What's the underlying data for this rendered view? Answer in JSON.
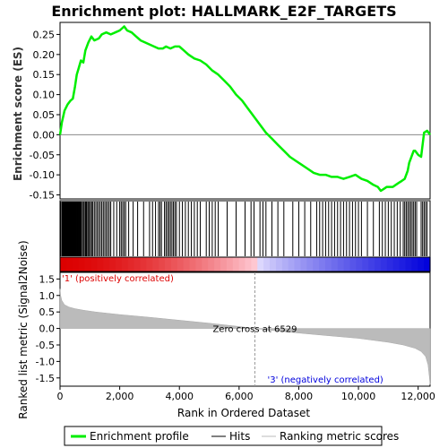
{
  "colors": {
    "enrichment": "#00ee00",
    "hits": "#000000",
    "metric_fill": "#bbbbbb",
    "positive": "#dd0000",
    "negative": "#0000dd",
    "zero_line": "#888888"
  },
  "chart_data": {
    "title": "Enrichment plot: HALLMARK_E2F_TARGETS",
    "es_panel": {
      "type": "line",
      "ylabel": "Enrichment score (ES)",
      "ylim": [
        -0.16,
        0.28
      ],
      "yticks": [
        "0.25",
        "0.20",
        "0.15",
        "0.10",
        "0.05",
        "0.00",
        "-0.05",
        "-0.10",
        "-0.15"
      ],
      "series": [
        {
          "name": "Enrichment profile",
          "x": [
            0,
            60,
            150,
            250,
            350,
            430,
            500,
            560,
            620,
            700,
            780,
            850,
            950,
            1050,
            1150,
            1300,
            1400,
            1550,
            1700,
            1850,
            2000,
            2150,
            2250,
            2400,
            2550,
            2700,
            2850,
            3000,
            3150,
            3300,
            3450,
            3550,
            3700,
            3850,
            4000,
            4150,
            4300,
            4500,
            4700,
            4900,
            5100,
            5300,
            5500,
            5700,
            5900,
            6100,
            6300,
            6500,
            6700,
            6900,
            7100,
            7300,
            7500,
            7700,
            7900,
            8100,
            8300,
            8500,
            8700,
            8900,
            9100,
            9300,
            9500,
            9700,
            9900,
            10100,
            10300,
            10500,
            10650,
            10750,
            10850,
            10950,
            11050,
            11150,
            11250,
            11350,
            11450,
            11550,
            11650,
            11700,
            11750,
            11800,
            11850,
            11900,
            12000,
            12100,
            12200,
            12300,
            12400
          ],
          "values": [
            0.0,
            0.03,
            0.06,
            0.075,
            0.085,
            0.09,
            0.12,
            0.15,
            0.165,
            0.185,
            0.18,
            0.21,
            0.23,
            0.245,
            0.235,
            0.24,
            0.25,
            0.255,
            0.25,
            0.255,
            0.26,
            0.27,
            0.26,
            0.255,
            0.245,
            0.235,
            0.23,
            0.225,
            0.22,
            0.215,
            0.215,
            0.22,
            0.215,
            0.22,
            0.22,
            0.21,
            0.2,
            0.19,
            0.185,
            0.175,
            0.16,
            0.15,
            0.135,
            0.12,
            0.1,
            0.085,
            0.065,
            0.045,
            0.025,
            0.005,
            -0.01,
            -0.025,
            -0.04,
            -0.055,
            -0.065,
            -0.075,
            -0.085,
            -0.095,
            -0.1,
            -0.1,
            -0.105,
            -0.105,
            -0.11,
            -0.105,
            -0.1,
            -0.11,
            -0.115,
            -0.125,
            -0.13,
            -0.14,
            -0.135,
            -0.13,
            -0.13,
            -0.13,
            -0.125,
            -0.12,
            -0.115,
            -0.11,
            -0.09,
            -0.07,
            -0.06,
            -0.05,
            -0.04,
            -0.04,
            -0.05,
            -0.055,
            0.005,
            0.01,
            0.0
          ]
        }
      ]
    },
    "hits_panel": {
      "series": [
        {
          "name": "Hits",
          "x": [
            20,
            60,
            90,
            120,
            150,
            180,
            210,
            240,
            270,
            300,
            330,
            360,
            390,
            420,
            450,
            480,
            510,
            540,
            560,
            580,
            600,
            620,
            640,
            660,
            690,
            720,
            760,
            800,
            840,
            870,
            900,
            940,
            980,
            1020,
            1060,
            1100,
            1150,
            1200,
            1250,
            1300,
            1350,
            1400,
            1450,
            1500,
            1550,
            1600,
            1650,
            1700,
            1800,
            1900,
            2000,
            2050,
            2100,
            2150,
            2200,
            2300,
            2450,
            2600,
            2800,
            3000,
            3100,
            3200,
            3300,
            3350,
            3400,
            3500,
            3550,
            3600,
            3650,
            3700,
            3750,
            3800,
            3850,
            3900,
            4000,
            4100,
            4200,
            4300,
            4400,
            4500,
            4600,
            4700,
            4900,
            5000,
            5100,
            5200,
            5300,
            5600,
            5900,
            6200,
            6400,
            6500,
            6700,
            6800,
            6900,
            7100,
            7300,
            7500,
            7800,
            8000,
            8200,
            8400,
            8600,
            8700,
            8800,
            8900,
            9000,
            9100,
            9200,
            9300,
            9400,
            9500,
            9600,
            9700,
            9800,
            9900,
            10000,
            10100,
            10300,
            10500,
            10700,
            10800,
            10900,
            11000,
            11100,
            11200,
            11300,
            11400,
            11500,
            11550,
            11600,
            11650,
            11700,
            11750,
            11800,
            11850,
            11900,
            11950,
            12100,
            12150,
            12200,
            12250,
            12300
          ]
        }
      ]
    },
    "metric_panel": {
      "type": "area",
      "ylabel": "Ranked list metric (Signal2Noise)",
      "xlabel": "Rank in Ordered Dataset",
      "ylim": [
        -1.75,
        1.7
      ],
      "xlim": [
        0,
        12400
      ],
      "yticks": [
        "1.5",
        "1.0",
        "0.5",
        "0.0",
        "-0.5",
        "-1.0",
        "-1.5"
      ],
      "xticks": [
        "0",
        "2,000",
        "4,000",
        "6,000",
        "8,000",
        "10,000",
        "12,000"
      ],
      "x": [
        0,
        20,
        60,
        150,
        300,
        500,
        800,
        1200,
        2000,
        3000,
        4000,
        5000,
        6000,
        6529,
        7000,
        8000,
        9000,
        10000,
        11000,
        11500,
        11900,
        12100,
        12250,
        12330,
        12380,
        12400
      ],
      "values": [
        1.2,
        1.0,
        0.85,
        0.72,
        0.65,
        0.6,
        0.55,
        0.5,
        0.42,
        0.34,
        0.25,
        0.16,
        0.06,
        0.0,
        -0.05,
        -0.14,
        -0.22,
        -0.3,
        -0.42,
        -0.5,
        -0.6,
        -0.7,
        -0.85,
        -1.1,
        -1.5,
        -1.7
      ],
      "zero_cross_label": "Zero cross at 6529",
      "positive_label": "'1' (positively correlated)",
      "negative_label": "'3' (negatively correlated)"
    },
    "legend": [
      {
        "label": "Enrichment profile",
        "color": "#00ee00"
      },
      {
        "label": "Hits",
        "color": "#000000"
      },
      {
        "label": "Ranking metric scores",
        "color": "#bbbbbb"
      }
    ]
  }
}
